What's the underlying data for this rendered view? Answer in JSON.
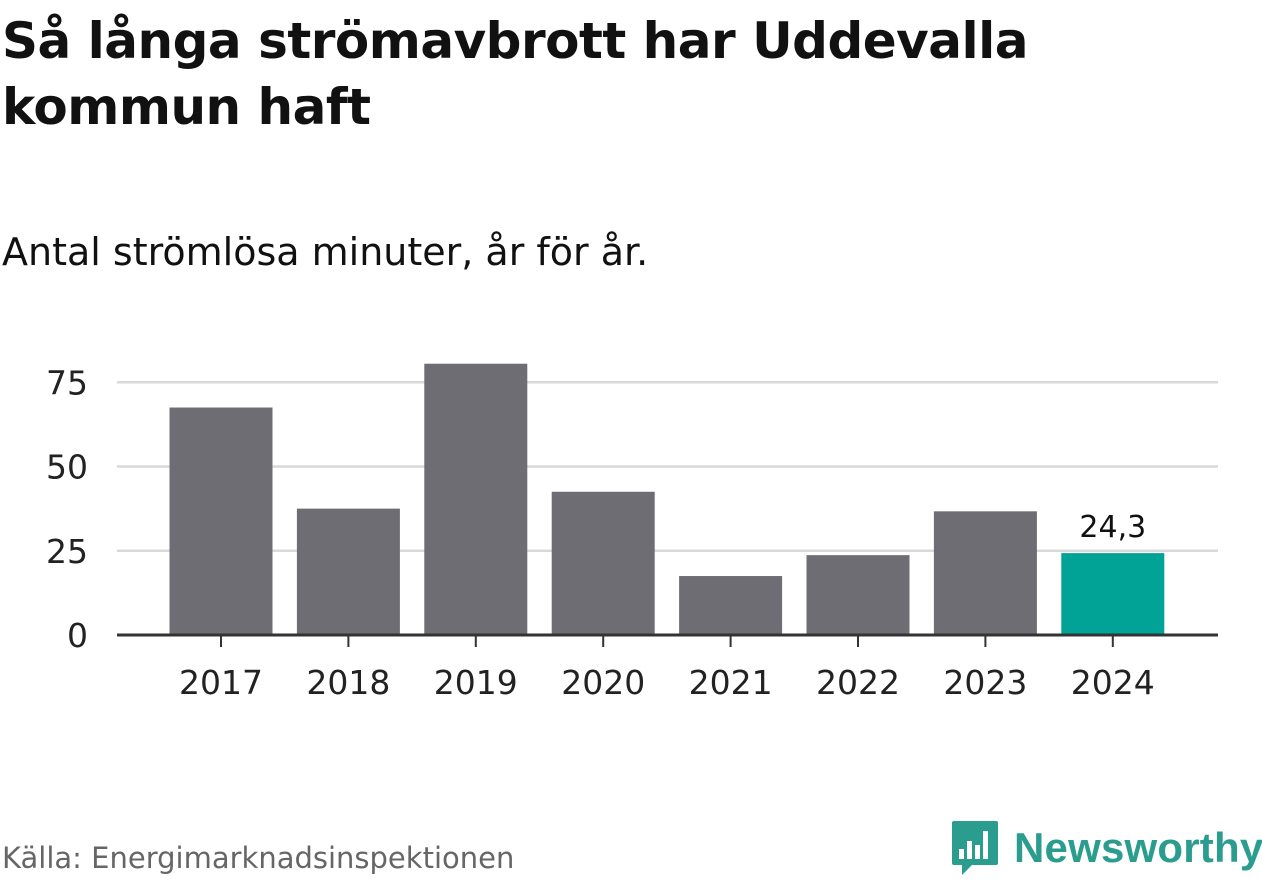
{
  "title": "Så långa strömavbrott har Uddevalla kommun haft",
  "subtitle": "Antal strömlösa minuter, år för år.",
  "source": "Källa: Energimarknadsinspektionen",
  "brand": {
    "name": "Newsworthy",
    "icon": "bar-chart-speech-bubble-icon"
  },
  "colors": {
    "bar": "#6e6d73",
    "highlight": "#00a396",
    "grid": "#d9d9d9",
    "axis": "#333333",
    "brand": "#2a9d8f"
  },
  "chart_data": {
    "type": "bar",
    "categories": [
      "2017",
      "2018",
      "2019",
      "2020",
      "2021",
      "2022",
      "2023",
      "2024"
    ],
    "values": [
      67.5,
      37.5,
      80.5,
      42.5,
      17.5,
      23.7,
      36.7,
      24.3
    ],
    "highlight_index": 7,
    "data_labels": [
      {
        "index": 7,
        "text": "24,3"
      }
    ],
    "yticks": [
      0,
      25,
      50,
      75
    ],
    "ylim": [
      0,
      85
    ],
    "xlabel": "",
    "ylabel": "",
    "grid": true
  }
}
